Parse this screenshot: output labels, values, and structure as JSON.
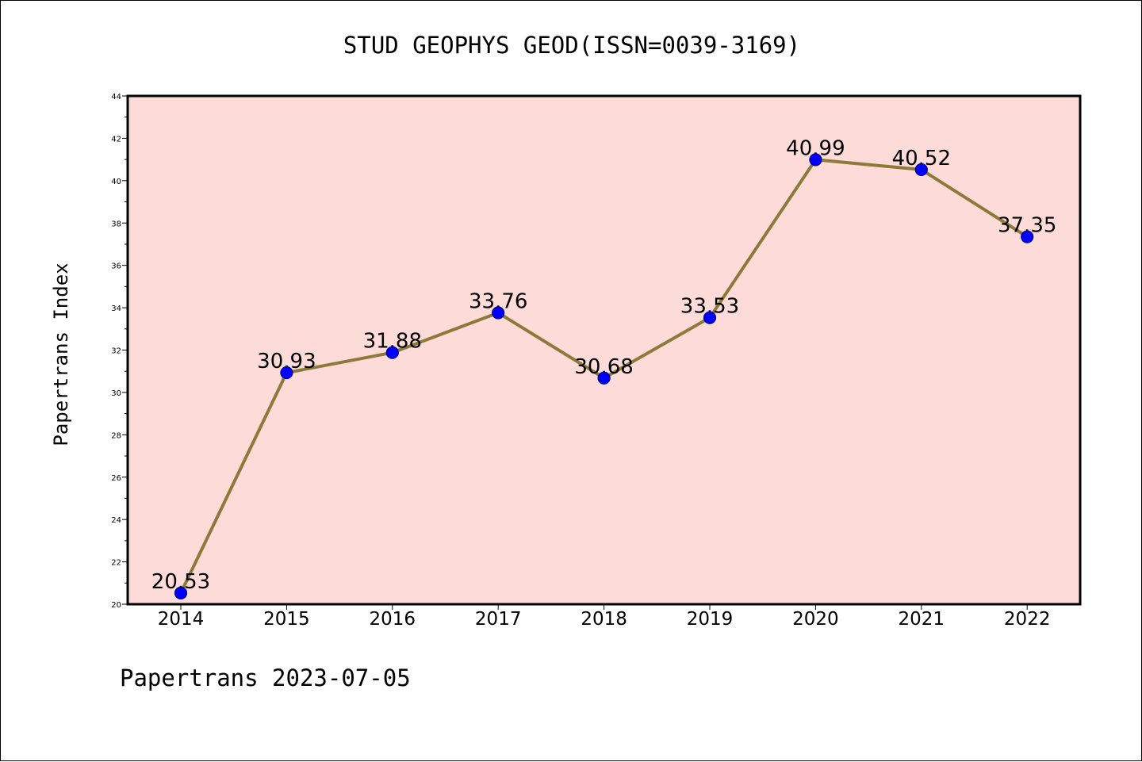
{
  "colors": {
    "plot_background": "#fddbd8",
    "line": "#8b7a3a",
    "marker_fill": "#0000ff",
    "marker_stroke": "#000080",
    "axis": "#000000",
    "page_background": "#ffffff"
  },
  "footer": "Papertrans 2023-07-05",
  "chart_data": {
    "type": "line",
    "title": "STUD GEOPHYS GEOD(ISSN=0039-3169)",
    "xlabel": "",
    "ylabel": "Papertrans Index",
    "categories": [
      "2014",
      "2015",
      "2016",
      "2017",
      "2018",
      "2019",
      "2020",
      "2021",
      "2022"
    ],
    "series": [
      {
        "values": [
          20.53,
          30.93,
          31.88,
          33.76,
          30.68,
          33.53,
          40.99,
          40.52,
          37.35
        ],
        "labels": [
          "20.53",
          "30.93",
          "31.88",
          "33.76",
          "30.68",
          "33.53",
          "40.99",
          "40.52",
          "37.35"
        ]
      }
    ],
    "ylim": [
      20,
      44
    ],
    "yticks": [
      "20",
      "22",
      "24",
      "26",
      "28",
      "30",
      "32",
      "34",
      "36",
      "38",
      "40",
      "42",
      "44"
    ],
    "grid": false,
    "legend": "none"
  }
}
